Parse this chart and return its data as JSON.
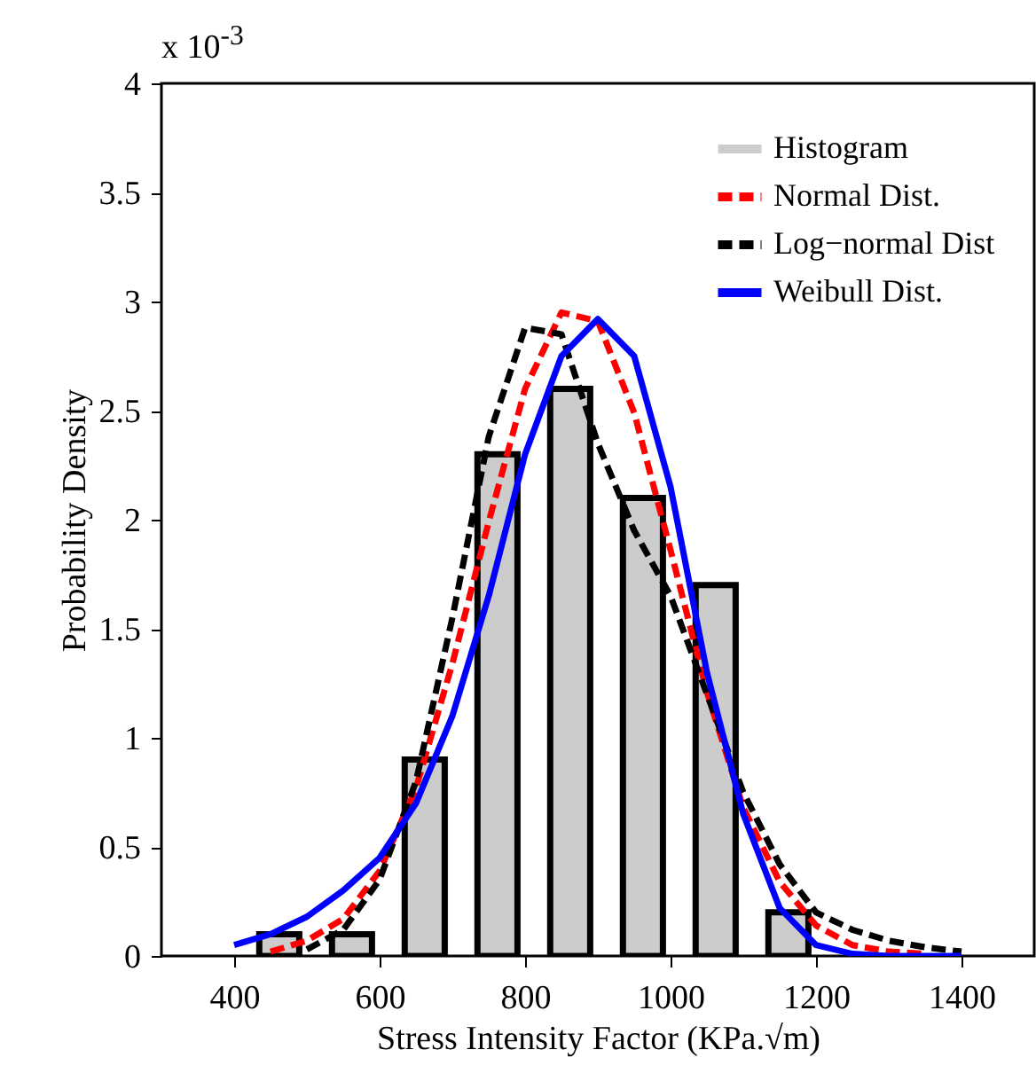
{
  "chart_data": {
    "type": "line",
    "xlabel": "Stress Intensity Factor (KPa.√m)",
    "ylabel": "Probability Density",
    "annotations": [
      "x 10$^{-3}$"
    ],
    "xlim": [
      300,
      1500
    ],
    "xticks": [
      400,
      600,
      800,
      1000,
      1200,
      1400
    ],
    "ylim": [
      0,
      4
    ],
    "yticks": [
      0,
      0.5,
      1,
      1.5,
      2,
      2.5,
      3,
      3.5,
      4
    ],
    "grid": false,
    "legend": "top right",
    "series": [
      {
        "type": "bar",
        "name": "Histogram",
        "color": "#cccccc",
        "x": [
          462,
          562,
          662,
          762,
          862,
          962,
          1062,
          1162
        ],
        "values": [
          0.1,
          0.1,
          0.9,
          2.3,
          2.6,
          2.1,
          1.7,
          0.2
        ]
      },
      {
        "name": "Normal Dist.",
        "color": "#ff0000",
        "line_style": "dashed",
        "x": [
          450,
          500,
          550,
          600,
          650,
          700,
          750,
          800,
          850,
          900,
          950,
          1000,
          1050,
          1100,
          1150,
          1200,
          1250,
          1300,
          1350
        ],
        "values": [
          0.02,
          0.07,
          0.17,
          0.39,
          0.77,
          1.34,
          1.99,
          2.6,
          2.95,
          2.91,
          2.49,
          1.86,
          1.21,
          0.68,
          0.34,
          0.14,
          0.05,
          0.02,
          0.01
        ]
      },
      {
        "name": "Log−normal Dist",
        "color": "#000000",
        "line_style": "dashed",
        "x": [
          500,
          550,
          600,
          650,
          700,
          750,
          800,
          850,
          900,
          950,
          1000,
          1050,
          1100,
          1150,
          1200,
          1250,
          1300,
          1350,
          1400
        ],
        "values": [
          0.03,
          0.12,
          0.35,
          0.8,
          1.55,
          2.38,
          2.88,
          2.85,
          2.35,
          1.95,
          1.65,
          1.2,
          0.75,
          0.42,
          0.2,
          0.12,
          0.07,
          0.04,
          0.02
        ]
      },
      {
        "name": "Weibull Dist.",
        "color": "#0000ff",
        "line_style": "solid",
        "x": [
          400,
          450,
          500,
          550,
          600,
          650,
          700,
          750,
          800,
          850,
          900,
          950,
          1000,
          1050,
          1100,
          1150,
          1200,
          1250,
          1300,
          1350,
          1400
        ],
        "values": [
          0.05,
          0.1,
          0.18,
          0.3,
          0.45,
          0.7,
          1.1,
          1.65,
          2.3,
          2.75,
          2.92,
          2.75,
          2.15,
          1.3,
          0.65,
          0.22,
          0.05,
          0.01,
          0,
          0,
          0
        ]
      }
    ]
  }
}
